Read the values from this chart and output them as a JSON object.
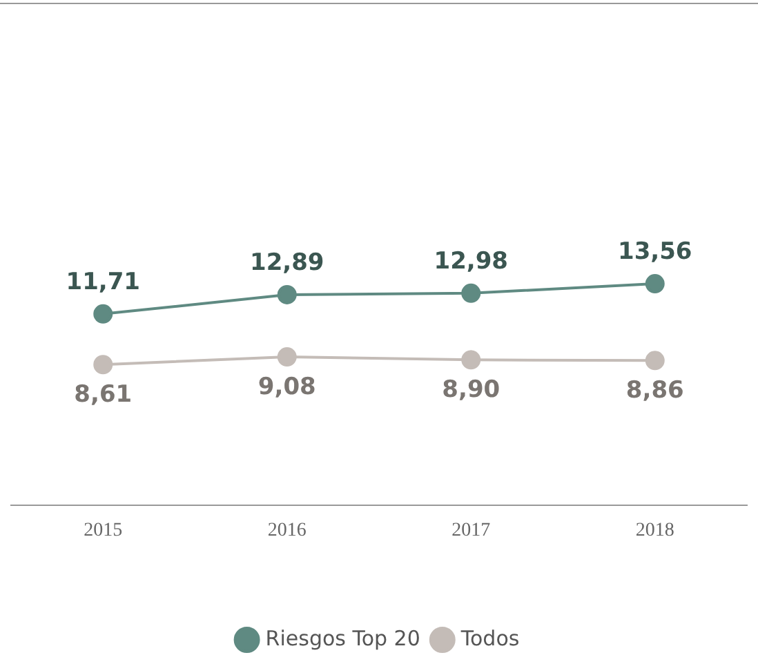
{
  "chart_data": {
    "type": "line",
    "categories": [
      "2015",
      "2016",
      "2017",
      "2018"
    ],
    "series": [
      {
        "name": "Riesgos Top 20",
        "color": "#5f8a82",
        "values": [
          11.71,
          12.89,
          12.98,
          13.56
        ],
        "value_labels": [
          "11,71",
          "12,89",
          "12,98",
          "13,56"
        ]
      },
      {
        "name": "Todos",
        "color": "#c4bcb7",
        "values": [
          8.61,
          9.08,
          8.9,
          8.86
        ],
        "value_labels": [
          "8,61",
          "9,08",
          "8,90",
          "8,86"
        ]
      }
    ],
    "legend": "bottom",
    "marker": "circle",
    "grid": false
  }
}
